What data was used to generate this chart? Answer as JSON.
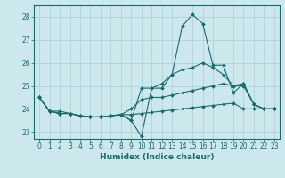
{
  "xlabel": "Humidex (Indice chaleur)",
  "xlim": [
    -0.5,
    23.5
  ],
  "ylim": [
    22.7,
    28.5
  ],
  "yticks": [
    23,
    24,
    25,
    26,
    27,
    28
  ],
  "xticks": [
    0,
    1,
    2,
    3,
    4,
    5,
    6,
    7,
    8,
    9,
    10,
    11,
    12,
    13,
    14,
    15,
    16,
    17,
    18,
    19,
    20,
    21,
    22,
    23
  ],
  "background_color": "#cce8ed",
  "grid_color": "#aacdd5",
  "line_color": "#1a6b6b",
  "lines": [
    [
      24.5,
      23.9,
      23.8,
      23.8,
      23.7,
      23.65,
      23.65,
      23.7,
      23.75,
      23.5,
      22.8,
      24.9,
      24.9,
      25.5,
      27.6,
      28.1,
      27.7,
      25.9,
      25.9,
      24.7,
      25.1,
      24.2,
      24.0,
      24.0
    ],
    [
      24.5,
      23.9,
      23.8,
      23.8,
      23.7,
      23.65,
      23.65,
      23.7,
      23.75,
      23.5,
      24.9,
      24.9,
      25.1,
      25.5,
      25.7,
      25.8,
      26.0,
      25.8,
      25.5,
      25.0,
      25.1,
      24.2,
      24.0,
      24.0
    ],
    [
      24.5,
      23.9,
      23.9,
      23.8,
      23.7,
      23.65,
      23.65,
      23.7,
      23.75,
      24.0,
      24.4,
      24.5,
      24.5,
      24.6,
      24.7,
      24.8,
      24.9,
      25.0,
      25.1,
      25.0,
      25.0,
      24.2,
      24.0,
      24.0
    ],
    [
      24.5,
      23.9,
      23.8,
      23.8,
      23.7,
      23.65,
      23.65,
      23.7,
      23.75,
      23.75,
      23.8,
      23.85,
      23.9,
      23.95,
      24.0,
      24.05,
      24.1,
      24.15,
      24.2,
      24.25,
      24.0,
      24.0,
      24.0,
      24.0
    ]
  ],
  "tick_fontsize": 5.5,
  "label_fontsize": 6.5,
  "marker": "D",
  "markersize": 2.0,
  "linewidth": 0.8
}
